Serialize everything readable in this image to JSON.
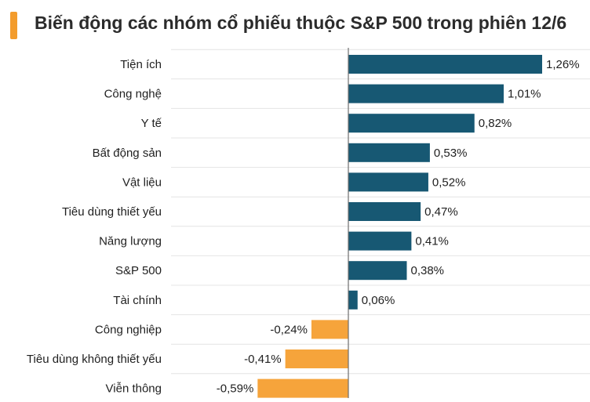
{
  "title": "Biến động các nhóm cổ phiếu thuộc S&P 500 trong phiên 12/6",
  "colors": {
    "accent": "#f39c2c",
    "positive": "#175873",
    "negative": "#f6a43b",
    "gridline": "#e4e4e4",
    "axis": "#6f6f6f"
  },
  "chart_data": {
    "type": "bar",
    "orientation": "horizontal",
    "title": "Biến động các nhóm cổ phiếu thuộc S&P 500 trong phiên 12/6",
    "xlabel": "",
    "ylabel": "",
    "grid": true,
    "legend": "none",
    "xlim": [
      -0.75,
      1.26
    ],
    "categories": [
      "Tiện ích",
      "Công nghệ",
      "Y tế",
      "Bất động sản",
      "Vật liệu",
      "Tiêu dùng thiết yếu",
      "Năng lượng",
      "S&P 500",
      "Tài chính",
      "Công nghiệp",
      "Tiêu dùng không thiết yếu",
      "Viễn thông"
    ],
    "values": [
      1.26,
      1.01,
      0.82,
      0.53,
      0.52,
      0.47,
      0.41,
      0.38,
      0.06,
      -0.24,
      -0.41,
      -0.59
    ],
    "value_labels": [
      "1,26%",
      "1,01%",
      "0,82%",
      "0,53%",
      "0,52%",
      "0,47%",
      "0,41%",
      "0,38%",
      "0,06%",
      "-0,24%",
      "-0,41%",
      "-0,59%"
    ]
  }
}
